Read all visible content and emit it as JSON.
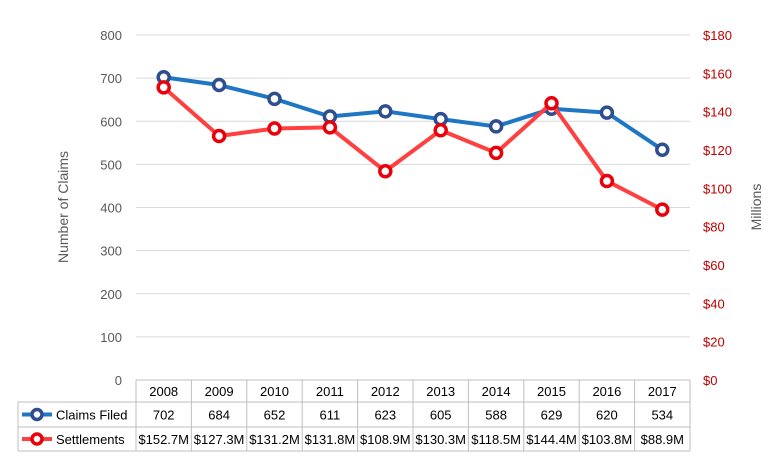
{
  "chart_data": {
    "type": "line",
    "categories": [
      "2008",
      "2009",
      "2010",
      "2011",
      "2012",
      "2013",
      "2014",
      "2015",
      "2016",
      "2017"
    ],
    "ylabel": "Number of Claims",
    "y2label": "Millions",
    "ylim": [
      0,
      800
    ],
    "y2lim": [
      0,
      180
    ],
    "y_ticks": [
      "0",
      "100",
      "200",
      "300",
      "400",
      "500",
      "600",
      "700",
      "800"
    ],
    "y2_ticks": [
      "$0",
      "$20",
      "$40",
      "$60",
      "$80",
      "$100",
      "$120",
      "$140",
      "$160",
      "$180"
    ],
    "grid": true,
    "legend": "data-table",
    "series": [
      {
        "name": "Claims Filed",
        "axis": "left",
        "color": "#1f77c4",
        "marker_color": "#2e4e8f",
        "values": [
          702,
          684,
          652,
          611,
          623,
          605,
          588,
          629,
          620,
          534
        ],
        "labels": [
          "702",
          "684",
          "652",
          "611",
          "623",
          "605",
          "588",
          "629",
          "620",
          "534"
        ]
      },
      {
        "name": "Settlements",
        "axis": "right",
        "color": "#ff4040",
        "marker_color": "#e8000b",
        "values": [
          152.7,
          127.3,
          131.2,
          131.8,
          108.9,
          130.3,
          118.5,
          144.4,
          103.8,
          88.9
        ],
        "labels": [
          "$152.7M",
          "$127.3M",
          "$131.2M",
          "$131.8M",
          "$108.9M",
          "$130.3M",
          "$118.5M",
          "$144.4M",
          "$103.8M",
          "$88.9M"
        ]
      }
    ]
  }
}
